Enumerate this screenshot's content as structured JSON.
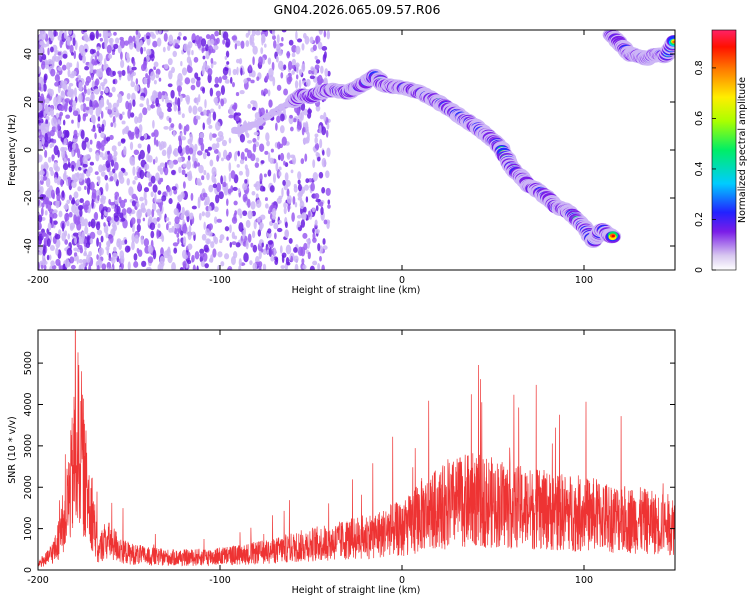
{
  "figure": {
    "title": "GN04.2026.065.09.57.R06"
  },
  "chart_data": [
    {
      "type": "heatmap",
      "title": "GN04.2026.065.09.57.R06",
      "xlabel": "Height of straight line (km)",
      "ylabel": "Frequency (Hz)",
      "xlim": [
        -200,
        150
      ],
      "ylim": [
        -50,
        50
      ],
      "xticks": [
        -200,
        -100,
        0,
        100
      ],
      "yticks": [
        -40,
        -20,
        0,
        20,
        40
      ],
      "colorbar": {
        "label": "Normalized spectral amplitude",
        "range": [
          0,
          0.95
        ],
        "ticks": [
          0,
          0.2,
          0.4,
          0.6,
          0.8
        ]
      },
      "ridge": {
        "name": "",
        "x": [
          -90,
          -80,
          -70,
          -60,
          -55,
          -50,
          -45,
          -40,
          -30,
          -20,
          -15,
          -10,
          0,
          10,
          20,
          30,
          40,
          50,
          55,
          60,
          65,
          70,
          75,
          80,
          85,
          90,
          95,
          100,
          105,
          110,
          115
        ],
        "y": [
          8,
          11,
          16,
          20,
          23,
          22,
          24,
          25,
          24,
          28,
          31,
          27,
          26,
          24,
          20,
          15,
          10,
          4,
          0,
          -7,
          -11,
          -15,
          -17,
          -20,
          -24,
          -25,
          -28,
          -32,
          -38,
          -33,
          -36
        ]
      },
      "ridge_upper": {
        "x": [
          115,
          120,
          125,
          130,
          135,
          140,
          145,
          150
        ],
        "y": [
          48,
          44,
          40,
          39,
          38,
          40,
          39,
          46
        ]
      }
    },
    {
      "type": "line",
      "title": "",
      "xlabel": "Height of straight line (km)",
      "ylabel": "SNR (10 * v/v)",
      "xlim": [
        -200,
        150
      ],
      "ylim": [
        0,
        5800
      ],
      "xticks": [
        -200,
        -100,
        0,
        100
      ],
      "yticks": [
        0,
        1000,
        2000,
        3000,
        4000,
        5000
      ],
      "color": "#ee3333",
      "envelope": {
        "x": [
          -200,
          -195,
          -190,
          -185,
          -182,
          -180,
          -178,
          -176,
          -174,
          -172,
          -170,
          -167,
          -164,
          -160,
          -155,
          -150,
          -140,
          -130,
          -120,
          -110,
          -100,
          -90,
          -80,
          -70,
          -60,
          -50,
          -40,
          -30,
          -20,
          -10,
          -5,
          0,
          5,
          10,
          20,
          30,
          40,
          50,
          60,
          70,
          80,
          90,
          100,
          110,
          120,
          130,
          140,
          150
        ],
        "y": [
          200,
          350,
          700,
          1700,
          2600,
          3400,
          4100,
          3700,
          2700,
          2300,
          1800,
          500,
          900,
          900,
          650,
          520,
          430,
          390,
          380,
          400,
          430,
          470,
          530,
          600,
          700,
          800,
          850,
          950,
          1050,
          1150,
          1300,
          1200,
          1450,
          1700,
          1900,
          2100,
          2200,
          2100,
          2000,
          1900,
          1850,
          1800,
          1750,
          1700,
          1600,
          1550,
          1450,
          1400
        ]
      }
    }
  ]
}
